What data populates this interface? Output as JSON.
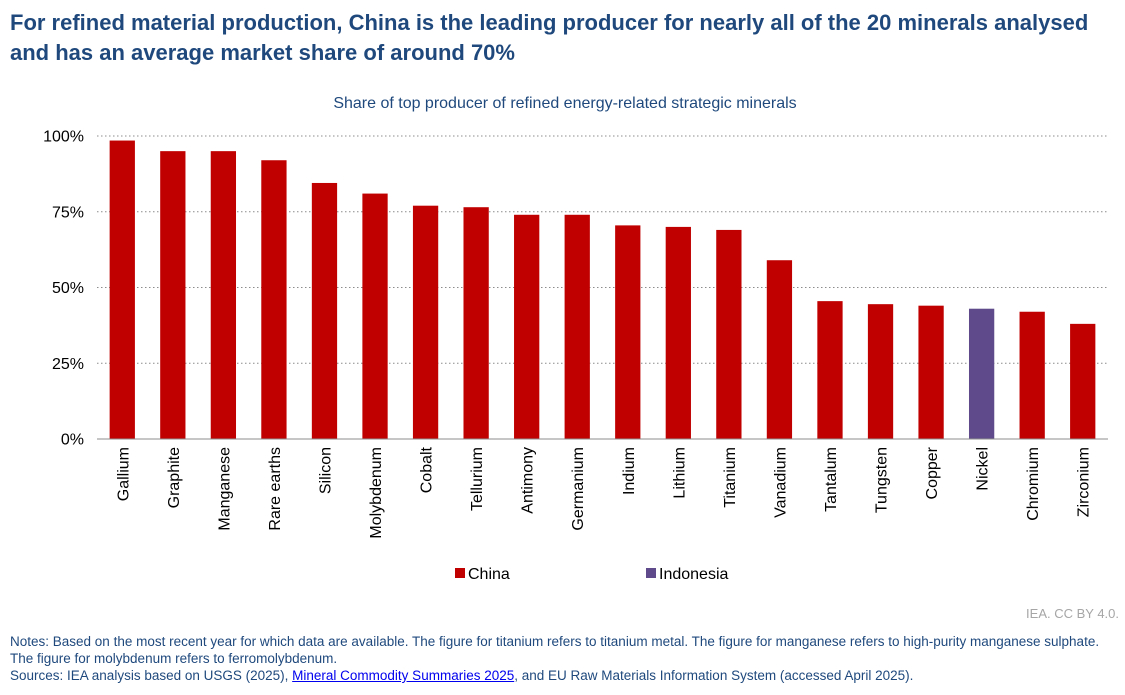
{
  "header": {
    "title": "For refined material production, China is the leading producer for nearly all of the 20 minerals analysed and has an average market share of around 70%"
  },
  "chart_data": {
    "type": "bar",
    "title": "Share of top producer of refined energy-related strategic minerals",
    "xlabel": "",
    "ylabel": "",
    "ylim": [
      0,
      100
    ],
    "yticks": [
      0,
      25,
      50,
      75,
      100
    ],
    "ytick_labels": [
      "0%",
      "25%",
      "50%",
      "75%",
      "100%"
    ],
    "grid": "horizontal dotted",
    "legend_position": "bottom",
    "categories": [
      "Gallium",
      "Graphite",
      "Manganese",
      "Rare earths",
      "Silicon",
      "Molybdenum",
      "Cobalt",
      "Tellurium",
      "Antimony",
      "Germanium",
      "Indium",
      "Lithium",
      "Titanium",
      "Vanadium",
      "Tantalum",
      "Tungsten",
      "Copper",
      "Nickel",
      "Chromium",
      "Zirconium"
    ],
    "values": [
      98.5,
      95,
      95,
      92,
      84.5,
      81,
      77,
      76.5,
      74,
      74,
      70.5,
      70,
      69,
      59,
      45.5,
      44.5,
      44,
      43,
      42,
      38
    ],
    "producers": [
      "China",
      "China",
      "China",
      "China",
      "China",
      "China",
      "China",
      "China",
      "China",
      "China",
      "China",
      "China",
      "China",
      "China",
      "China",
      "China",
      "China",
      "Indonesia",
      "China",
      "China"
    ],
    "series": [
      {
        "name": "China",
        "color": "#c00000"
      },
      {
        "name": "Indonesia",
        "color": "#5f4b8b"
      }
    ]
  },
  "footer": {
    "credit": "IEA. CC BY 4.0.",
    "notes": "Notes: Based on the most recent year for which data are available. The figure for titanium refers to titanium metal. The figure for manganese refers to high-purity manganese sulphate. The figure for molybdenum refers to ferromolybdenum.",
    "sources_prefix": "Sources: IEA analysis based on USGS (2025), ",
    "sources_link": "Mineral Commodity Summaries 2025",
    "sources_suffix": ", and EU Raw Materials Information System (accessed April 2025)."
  }
}
